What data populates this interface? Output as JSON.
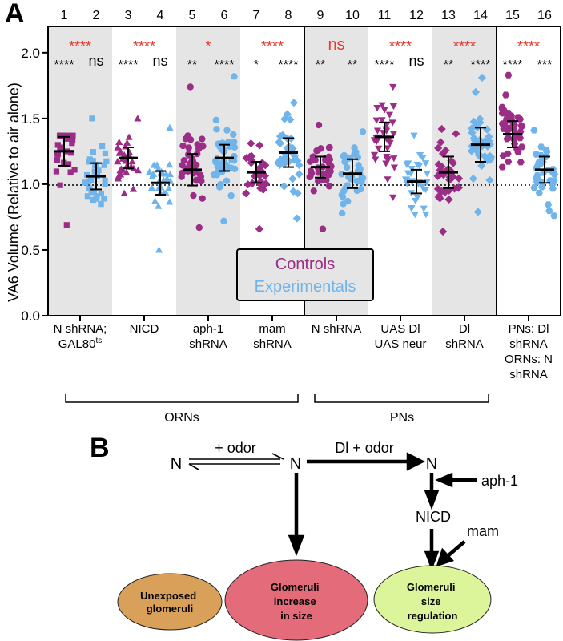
{
  "panel_a": {
    "letter": "A",
    "ylabel": "VA6 Volume (Relative to air alone)",
    "legend": {
      "controls": "Controls",
      "experimentals": "Experimentals"
    },
    "groups": [
      {
        "label": "ORNs"
      },
      {
        "label": "PNs"
      }
    ]
  },
  "chart_data": {
    "type": "scatter",
    "title": "",
    "ylabel": "VA6 Volume (Relative to air alone)",
    "ylim": [
      0,
      2.2
    ],
    "yticks": [
      "0.0",
      "0.5",
      "1.0",
      "1.5",
      "2.0"
    ],
    "reference_line": 1.0,
    "column_numbers": [
      "1",
      "2",
      "3",
      "4",
      "5",
      "6",
      "7",
      "8",
      "9",
      "10",
      "11",
      "12",
      "13",
      "14",
      "15",
      "16"
    ],
    "colors": {
      "control": "#9b2d86",
      "experimental": "#6fb4ea",
      "shade": "#e5e5e5",
      "red": "#e8392b"
    },
    "shaded_pairs": [
      1,
      3,
      5,
      7
    ],
    "comparisons": [
      {
        "pair": 1,
        "label": "****"
      },
      {
        "pair": 2,
        "label": "****"
      },
      {
        "pair": 3,
        "label": "*"
      },
      {
        "pair": 4,
        "label": "****"
      },
      {
        "pair": 5,
        "label": "ns"
      },
      {
        "pair": 6,
        "label": "****"
      },
      {
        "pair": 7,
        "label": "****"
      },
      {
        "pair": 8,
        "label": "****"
      }
    ],
    "significance": [
      "****",
      "ns",
      "****",
      "ns",
      "**",
      "****",
      "*",
      "****",
      "**",
      "**",
      "****",
      "ns",
      "**",
      "****",
      "****",
      "***"
    ],
    "categories": [
      {
        "lines": [
          "N shRNA;",
          "GAL80ts"
        ],
        "pair": 1
      },
      {
        "lines": [
          "NICD"
        ],
        "pair": 2
      },
      {
        "lines": [
          "aph-1",
          "shRNA"
        ],
        "pair": 3
      },
      {
        "lines": [
          "mam",
          "shRNA"
        ],
        "pair": 4
      },
      {
        "lines": [
          "N shRNA"
        ],
        "pair": 5
      },
      {
        "lines": [
          "UAS Dl",
          "UAS neur"
        ],
        "pair": 6
      },
      {
        "lines": [
          "Dl",
          "shRNA"
        ],
        "pair": 7
      },
      {
        "lines": [
          "PNs: Dl",
          "shRNA",
          "ORNs: N",
          "shRNA"
        ],
        "pair": 8
      }
    ],
    "series": [
      {
        "name": "Controls",
        "marker": "square",
        "mean": 1.25,
        "sd": 0.11,
        "min": 0.69,
        "max": 1.37,
        "n": 28
      },
      {
        "name": "Experimentals",
        "marker": "square",
        "mean": 1.06,
        "sd": 0.1,
        "min": 0.85,
        "max": 1.5,
        "n": 32
      },
      {
        "name": "Controls",
        "marker": "triangle-up",
        "mean": 1.2,
        "sd": 0.08,
        "min": 0.93,
        "max": 1.5,
        "n": 30
      },
      {
        "name": "Experimentals",
        "marker": "triangle-up",
        "mean": 1.01,
        "sd": 0.09,
        "min": 0.5,
        "max": 1.43,
        "n": 30
      },
      {
        "name": "Controls",
        "marker": "circle",
        "mean": 1.11,
        "sd": 0.12,
        "min": 0.67,
        "max": 1.74,
        "n": 40
      },
      {
        "name": "Experimentals",
        "marker": "circle",
        "mean": 1.2,
        "sd": 0.1,
        "min": 0.72,
        "max": 1.82,
        "n": 40
      },
      {
        "name": "Controls",
        "marker": "diamond",
        "mean": 1.09,
        "sd": 0.08,
        "min": 0.66,
        "max": 1.31,
        "n": 26
      },
      {
        "name": "Experimentals",
        "marker": "diamond",
        "mean": 1.24,
        "sd": 0.11,
        "min": 0.74,
        "max": 1.62,
        "n": 32
      },
      {
        "name": "Controls",
        "marker": "circle",
        "mean": 1.13,
        "sd": 0.08,
        "min": 0.66,
        "max": 1.45,
        "n": 34
      },
      {
        "name": "Experimentals",
        "marker": "circle",
        "mean": 1.08,
        "sd": 0.11,
        "min": 0.78,
        "max": 1.4,
        "n": 36
      },
      {
        "name": "Controls",
        "marker": "triangle-down",
        "mean": 1.36,
        "sd": 0.11,
        "min": 0.9,
        "max": 1.74,
        "n": 36
      },
      {
        "name": "Experimentals",
        "marker": "triangle-down",
        "mean": 1.02,
        "sd": 0.09,
        "min": 0.77,
        "max": 1.37,
        "n": 32
      },
      {
        "name": "Controls",
        "marker": "diamond",
        "mean": 1.09,
        "sd": 0.12,
        "min": 0.64,
        "max": 1.42,
        "n": 36
      },
      {
        "name": "Experimentals",
        "marker": "diamond",
        "mean": 1.3,
        "sd": 0.13,
        "min": 0.79,
        "max": 1.81,
        "n": 40
      },
      {
        "name": "Controls",
        "marker": "hexagon",
        "mean": 1.38,
        "sd": 0.1,
        "min": 1.13,
        "max": 1.83,
        "n": 40
      },
      {
        "name": "Experimentals",
        "marker": "hexagon",
        "mean": 1.11,
        "sd": 0.1,
        "min": 0.76,
        "max": 1.41,
        "n": 36
      }
    ]
  },
  "panel_b": {
    "letter": "B",
    "nodes": {
      "n_left": "N",
      "n_mid": "N",
      "n_right": "N",
      "nicd": "NICD"
    },
    "labels": {
      "odor": "+ odor",
      "dl_odor": "Dl + odor",
      "aph1": "aph-1",
      "mam": "mam"
    },
    "ellipses": [
      {
        "lines": [
          "Unexposed",
          "glomeruli"
        ],
        "color": "#d9a05a"
      },
      {
        "lines": [
          "Glomeruli",
          "increase",
          "in size"
        ],
        "color": "#e36b7a"
      },
      {
        "lines": [
          "Glomeruli",
          "size",
          "regulation"
        ],
        "color": "#ddf59a"
      }
    ]
  }
}
